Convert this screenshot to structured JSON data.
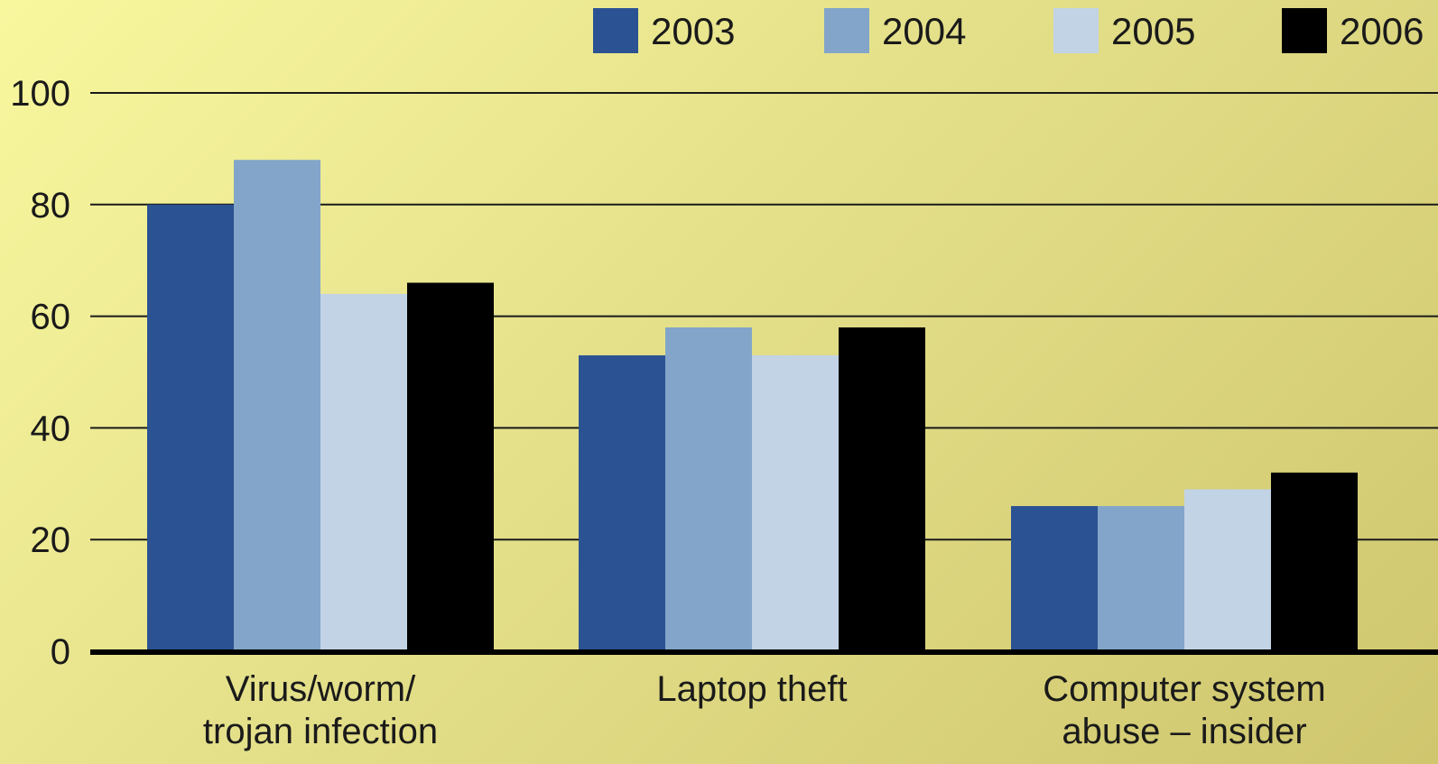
{
  "chart_data": {
    "type": "bar",
    "title": "",
    "xlabel": "",
    "ylabel": "",
    "categories": [
      [
        "Virus/worm/",
        "trojan infection"
      ],
      [
        "Laptop theft"
      ],
      [
        "Computer system",
        "abuse – insider"
      ]
    ],
    "series": [
      {
        "name": "2003",
        "color": "#2b5292",
        "values": [
          80,
          53,
          26
        ]
      },
      {
        "name": "2004",
        "color": "#82a5c9",
        "values": [
          88,
          58,
          26
        ]
      },
      {
        "name": "2005",
        "color": "#c2d3e6",
        "values": [
          64,
          53,
          29
        ]
      },
      {
        "name": "2006",
        "color": "#000000",
        "values": [
          66,
          58,
          32
        ]
      }
    ],
    "ylim": [
      0,
      100
    ],
    "yticks": [
      0,
      20,
      40,
      60,
      80,
      100
    ],
    "grid": true,
    "legend_position": "top-right"
  }
}
